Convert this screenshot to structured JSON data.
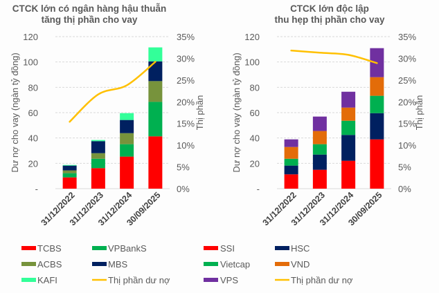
{
  "chart_data": [
    {
      "type": "bar",
      "stacked": true,
      "title": [
        "CTCK lớn có ngân hàng hậu thuẫn",
        "tăng thị phần cho vay"
      ],
      "ylabel": "Dư nợ cho vay (ngàn tỷ đồng)",
      "y2label": "Thị phần",
      "ylim": [
        0,
        120
      ],
      "yticks": [
        "-",
        "20",
        "40",
        "60",
        "80",
        "100",
        "120"
      ],
      "y2lim": [
        0,
        35
      ],
      "y2ticks": [
        "0%",
        "5%",
        "10%",
        "15%",
        "20%",
        "25%",
        "30%",
        "35%"
      ],
      "grid": true,
      "legend_position": "bottom",
      "categories": [
        "31/12/2022",
        "31/12/2023",
        "31/12/2024",
        "30/09/2025"
      ],
      "series": [
        {
          "name": "TCBS",
          "color": "#ff0000",
          "values": [
            8.9,
            16.2,
            25.3,
            41.3
          ]
        },
        {
          "name": "VPBankS",
          "color": "#00b050",
          "values": [
            3.3,
            7.4,
            9.8,
            27.2
          ]
        },
        {
          "name": "ACBS",
          "color": "#77933c",
          "values": [
            2.2,
            4.4,
            8.7,
            16.4
          ]
        },
        {
          "name": "MBS",
          "color": "#002060",
          "values": [
            3.8,
            9.5,
            10.4,
            15.6
          ]
        },
        {
          "name": "KAFI",
          "color": "#33ff99",
          "values": [
            0.5,
            0.9,
            5.4,
            11.0
          ]
        }
      ],
      "line": {
        "name": "Thị phần dư nợ",
        "color": "#ffc000",
        "axis": "right",
        "values": [
          15.4,
          21.7,
          23.8,
          29.2
        ]
      }
    },
    {
      "type": "bar",
      "stacked": true,
      "title": [
        "CTCK lớn độc lập",
        "thu hẹp thị phần cho vay"
      ],
      "ylabel": "Dư nợ cho vay (ngàn tỷ đồng)",
      "y2label": "Thị phần",
      "ylim": [
        0,
        120
      ],
      "yticks": [
        "-",
        "20",
        "40",
        "60",
        "80",
        "100",
        "120"
      ],
      "y2lim": [
        0,
        35
      ],
      "y2ticks": [
        "0%",
        "5%",
        "10%",
        "15%",
        "20%",
        "25%",
        "30%",
        "35%"
      ],
      "grid": true,
      "legend_position": "bottom",
      "categories": [
        "31/12/2022",
        "31/12/2023",
        "31/12/2024",
        "30/09/2025"
      ],
      "series": [
        {
          "name": "SSI",
          "color": "#ff0000",
          "values": [
            11.3,
            14.9,
            22.0,
            38.9
          ]
        },
        {
          "name": "HSC",
          "color": "#002060",
          "values": [
            6.9,
            12.0,
            20.4,
            20.7
          ]
        },
        {
          "name": "Vietcap",
          "color": "#00b050",
          "values": [
            5.4,
            8.2,
            11.2,
            13.7
          ]
        },
        {
          "name": "VND",
          "color": "#e36c09",
          "values": [
            9.3,
            10.4,
            10.4,
            14.7
          ]
        },
        {
          "name": "VPS",
          "color": "#7030a0",
          "values": [
            6.0,
            11.4,
            12.5,
            22.9
          ]
        }
      ],
      "line": {
        "name": "Thị phần dư nợ",
        "color": "#ffc000",
        "axis": "right",
        "values": [
          31.8,
          31.3,
          30.8,
          28.9
        ]
      }
    }
  ]
}
